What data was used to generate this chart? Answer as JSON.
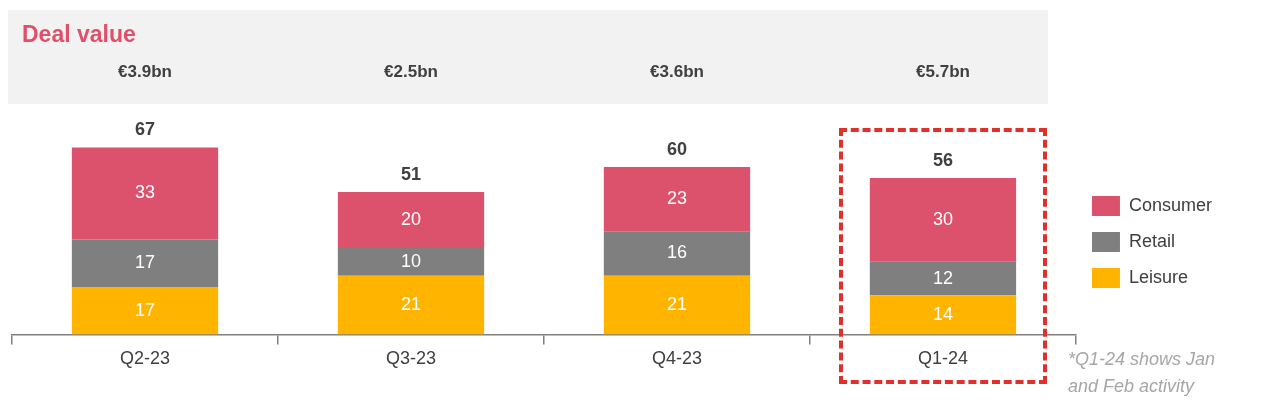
{
  "chart_data": {
    "type": "bar",
    "title": "Deal value",
    "stacked": true,
    "data_labels": true,
    "legend": "right",
    "categories": [
      "Q2-23",
      "Q3-23",
      "Q4-23",
      "Q1-24"
    ],
    "series": [
      {
        "name": "Leisure",
        "color": "#ffb400",
        "values": [
          17,
          21,
          21,
          14
        ]
      },
      {
        "name": "Retail",
        "color": "#7f7f7f",
        "values": [
          17,
          10,
          16,
          12
        ]
      },
      {
        "name": "Consumer",
        "color": "#dc526c",
        "values": [
          33,
          20,
          23,
          30
        ]
      }
    ],
    "totals": [
      "67",
      "51",
      "60",
      "56"
    ],
    "annotations": [
      "€3.9bn",
      "€2.5bn",
      "€3.6bn",
      "€5.7bn",
      "*Q1-24 shows Jan and Feb activity"
    ]
  }
}
